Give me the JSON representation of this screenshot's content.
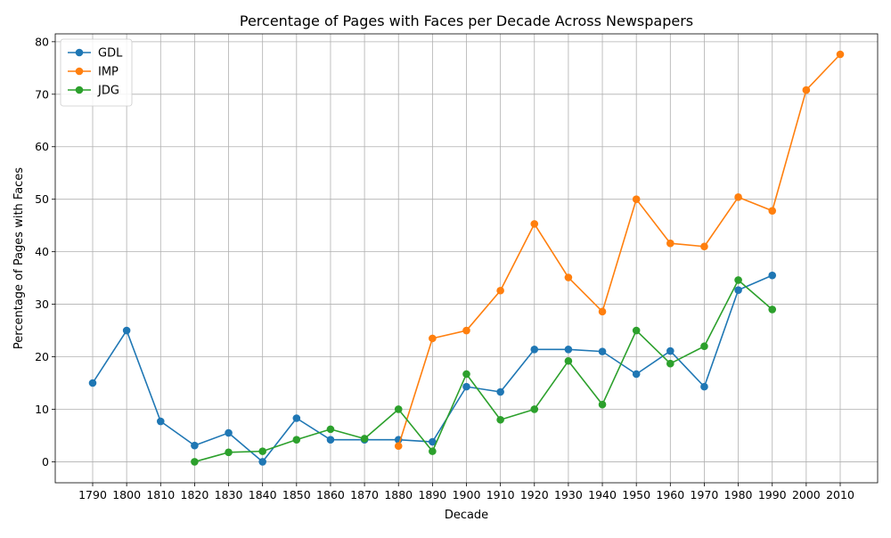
{
  "chart_data": {
    "type": "line",
    "title": "Percentage of Pages with Faces per Decade Across Newspapers",
    "xlabel": "Decade",
    "ylabel": "Percentage of Pages with Faces",
    "x": [
      "1790",
      "1800",
      "1810",
      "1820",
      "1830",
      "1840",
      "1850",
      "1860",
      "1870",
      "1880",
      "1890",
      "1900",
      "1910",
      "1920",
      "1930",
      "1940",
      "1950",
      "1960",
      "1970",
      "1980",
      "1990",
      "2000",
      "2010"
    ],
    "ylim": [
      -4,
      81.5
    ],
    "yticks": [
      0,
      10,
      20,
      30,
      40,
      50,
      60,
      70,
      80
    ],
    "grid": true,
    "legend_position": "top-left",
    "series": [
      {
        "name": "GDL",
        "color": "#1f77b4",
        "values": [
          15.0,
          25.0,
          7.7,
          3.1,
          5.5,
          0.0,
          8.3,
          4.2,
          4.2,
          4.2,
          3.8,
          14.3,
          13.3,
          21.4,
          21.4,
          21.0,
          16.7,
          21.1,
          14.3,
          32.7,
          35.5,
          null,
          null
        ]
      },
      {
        "name": "IMP",
        "color": "#ff7f0e",
        "values": [
          null,
          null,
          null,
          null,
          null,
          null,
          null,
          null,
          null,
          3.0,
          23.5,
          25.0,
          32.6,
          45.3,
          35.1,
          28.6,
          50.0,
          41.6,
          41.0,
          50.4,
          47.8,
          70.8,
          77.6
        ]
      },
      {
        "name": "JDG",
        "color": "#2ca02c",
        "values": [
          null,
          null,
          null,
          0.0,
          1.8,
          2.0,
          4.2,
          6.2,
          4.4,
          10.0,
          2.0,
          16.7,
          8.0,
          10.0,
          19.2,
          10.9,
          25.0,
          18.7,
          22.0,
          34.6,
          29.0,
          null,
          null
        ]
      }
    ]
  }
}
